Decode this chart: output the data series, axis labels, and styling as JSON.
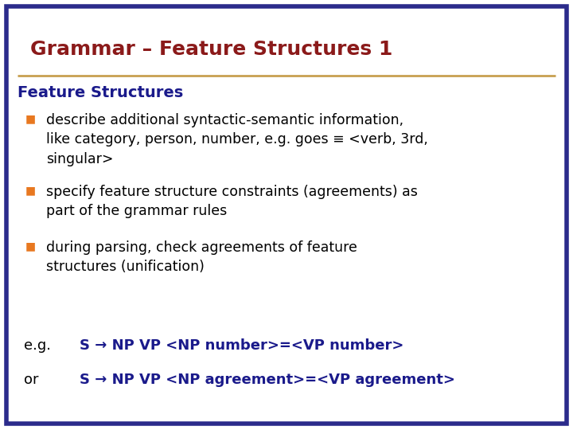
{
  "title": "Grammar – Feature Structures 1",
  "title_color": "#8B1A1A",
  "title_fontsize": 18,
  "subtitle": "Feature Structures",
  "subtitle_color": "#1A1A8B",
  "subtitle_fontsize": 14,
  "bullet_color": "#E87820",
  "bullet_text_color": "#000000",
  "bullet_fontsize": 12.5,
  "bullets": [
    "describe additional syntactic-semantic information,\nlike category, person, number, e.g. goes ≡ <verb, 3rd,\nsingular>",
    "specify feature structure constraints (agreements) as\npart of the grammar rules",
    "during parsing, check agreements of feature\nstructures (unification)"
  ],
  "example_label_color": "#000000",
  "example_text_color": "#1A1A8B",
  "example_fontsize": 13,
  "examples": [
    [
      "e.g.",
      "S → NP VP <NP number>=<VP number>"
    ],
    [
      "or",
      "S → NP VP <NP agreement>=<VP agreement>"
    ]
  ],
  "bg_color": "#FFFFFF",
  "border_color": "#2B2B8B",
  "divider_color": "#C8A050",
  "border_linewidth": 4
}
